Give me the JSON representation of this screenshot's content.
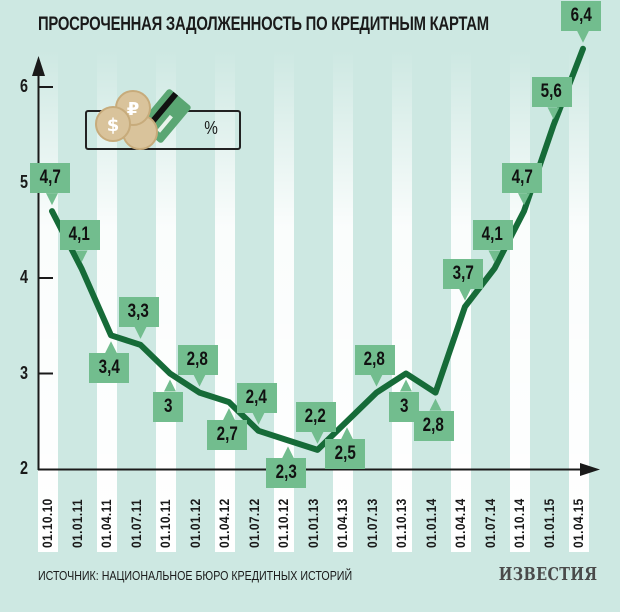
{
  "title": "ПРОСРОЧЕННАЯ ЗАДОЛЖЕННОСТЬ ПО КРЕДИТНЫМ КАРТАМ",
  "legend": {
    "unit_label": "%",
    "icon": "coins-and-credit-card-icon"
  },
  "source": "ИСТОЧНИК: НАЦИОНАЛЬНОЕ БЮРО КРЕДИТНЫХ ИСТОРИЙ",
  "brand": "ИЗВЕСТИЯ",
  "colors": {
    "background": "#cde8e2",
    "stripe": "#ffffff",
    "line": "#166b38",
    "label_box": "#72bd8e",
    "axis": "#1a1a1a"
  },
  "chart_data": {
    "type": "line",
    "title": "ПРОСРОЧЕННАЯ ЗАДОЛЖЕННОСТЬ ПО КРЕДИТНЫМ КАРТАМ",
    "xlabel": "",
    "ylabel": "%",
    "ylim": [
      2,
      6.5
    ],
    "yticks": [
      2,
      3,
      4,
      5,
      6
    ],
    "grid": false,
    "legend_position": "top-left",
    "categories": [
      "01.10.10",
      "01.01.11",
      "01.04.11",
      "01.07.11",
      "01.10.11",
      "01.01.12",
      "01.04.12",
      "01.07.12",
      "01.10.12",
      "01.01.13",
      "01.04.13",
      "01.07.13",
      "01.10.13",
      "01.01.14",
      "01.04.14",
      "01.07.14",
      "01.10.14",
      "01.01.15",
      "01.04.15"
    ],
    "series": [
      {
        "name": "Просроченная задолженность по кредитным картам, %",
        "values": [
          4.7,
          4.1,
          3.4,
          3.3,
          3.0,
          2.8,
          2.7,
          2.4,
          2.3,
          2.2,
          2.5,
          2.8,
          3.0,
          2.8,
          3.7,
          4.1,
          4.7,
          5.6,
          6.4
        ],
        "labels": [
          "4,7",
          "4,1",
          "3,4",
          "3,3",
          "3",
          "2,8",
          "2,7",
          "2,4",
          "2,3",
          "2,2",
          "2,5",
          "2,8",
          "3",
          "2,8",
          "3,7",
          "4,1",
          "4,7",
          "5,6",
          "6,4"
        ],
        "label_pos": [
          "above",
          "above",
          "below",
          "above",
          "below",
          "above",
          "below",
          "above",
          "below",
          "above",
          "below",
          "above",
          "below",
          "below",
          "above",
          "above",
          "above",
          "above",
          "above"
        ]
      }
    ]
  }
}
